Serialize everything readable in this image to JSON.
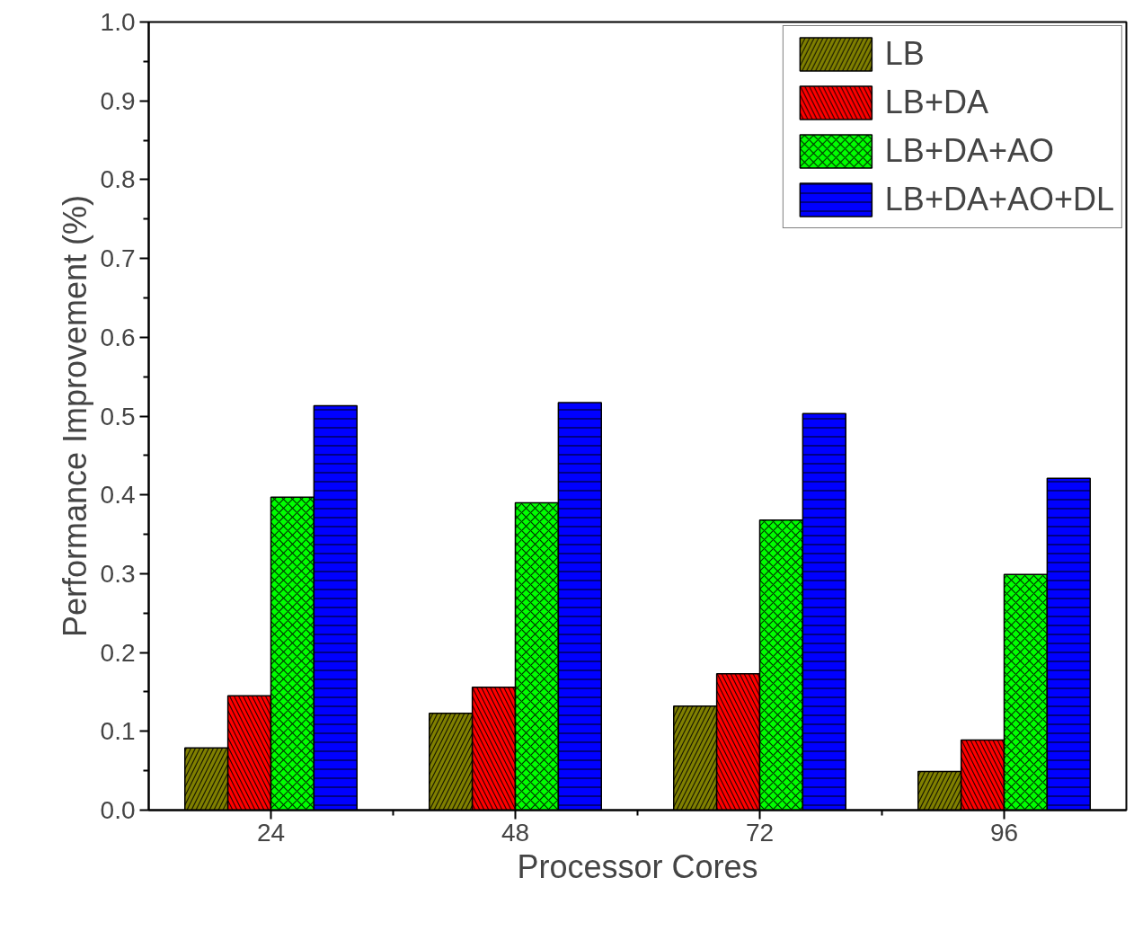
{
  "chart_data": {
    "type": "bar",
    "xlabel": "Processor Cores",
    "ylabel": "Performance Improvement (%)",
    "categories": [
      "24",
      "48",
      "72",
      "96"
    ],
    "series": [
      {
        "name": "LB",
        "color": "#808000",
        "values": [
          0.079,
          0.123,
          0.132,
          0.049
        ]
      },
      {
        "name": "LB+DA",
        "color": "#ff0000",
        "values": [
          0.145,
          0.156,
          0.173,
          0.089
        ]
      },
      {
        "name": "LB+DA+AO",
        "color": "#00ff00",
        "values": [
          0.397,
          0.39,
          0.368,
          0.299
        ]
      },
      {
        "name": "LB+DA+AO+DL",
        "color": "#0000ff",
        "values": [
          0.513,
          0.517,
          0.503,
          0.421
        ]
      }
    ],
    "ylim": [
      0,
      1
    ],
    "yticks": [
      {
        "value": 0,
        "label": "0.0"
      },
      0.1,
      0.2,
      0.3,
      0.4,
      0.5,
      0.6,
      0.7,
      0.8,
      0.9,
      {
        "value": 1,
        "label": "1.0"
      }
    ],
    "grid": false,
    "legend": "top right"
  }
}
